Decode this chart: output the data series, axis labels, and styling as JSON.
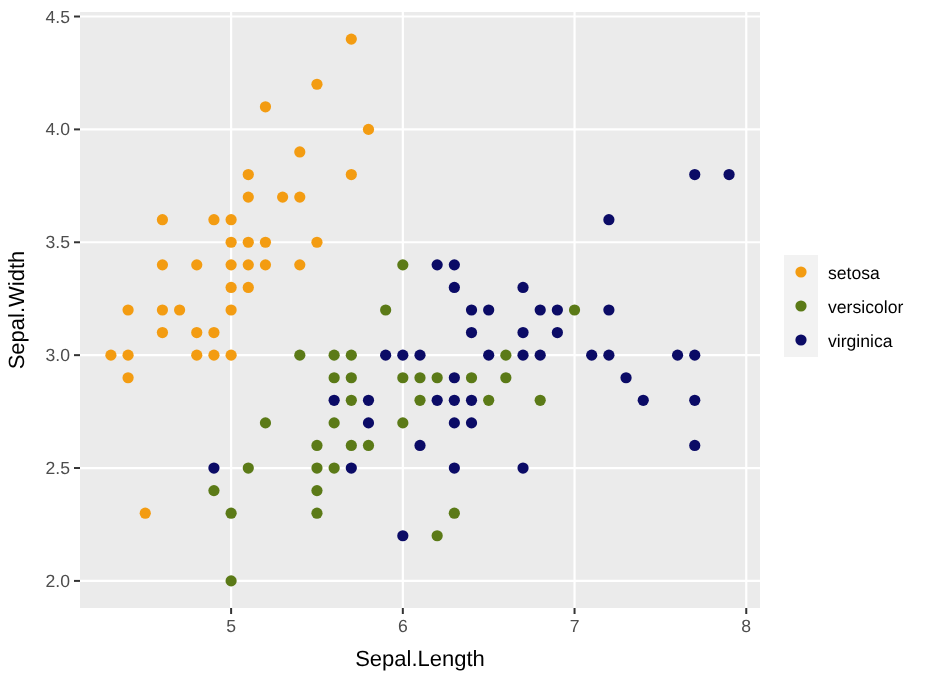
{
  "chart_data": {
    "type": "scatter",
    "xlabel": "Sepal.Length",
    "ylabel": "Sepal.Width",
    "xlim": [
      4.12,
      8.08
    ],
    "ylim": [
      1.88,
      4.52
    ],
    "xticks": [
      5,
      6,
      7,
      8
    ],
    "yticks": [
      {
        "value": 2,
        "label": "2.0"
      },
      {
        "value": 2.5,
        "label": "2.5"
      },
      {
        "value": 3,
        "label": "3.0"
      },
      {
        "value": 3.5,
        "label": "3.5"
      },
      {
        "value": 4,
        "label": "4.0"
      },
      {
        "value": 4.5,
        "label": "4.5"
      }
    ],
    "grid": true,
    "legend": "right",
    "marker": "circle",
    "series": [
      {
        "name": "setosa",
        "color": "#f39c12",
        "x": [
          5.1,
          4.9,
          4.7,
          4.6,
          5.0,
          5.4,
          4.6,
          5.0,
          4.4,
          4.9,
          5.4,
          4.8,
          4.8,
          4.3,
          5.8,
          5.7,
          5.7,
          5.1,
          5.4,
          5.1,
          4.6,
          5.1,
          5.0,
          5.2,
          5.2,
          4.8,
          5.2,
          5.5,
          5.0,
          5.5,
          4.9,
          4.4,
          5.1,
          5.0,
          4.5,
          4.4,
          4.6,
          5.3,
          5.0
        ],
        "values": [
          3.5,
          3.0,
          3.2,
          3.1,
          3.6,
          3.9,
          3.4,
          3.4,
          2.9,
          3.1,
          3.7,
          3.4,
          3.0,
          3.0,
          4.0,
          4.4,
          3.8,
          3.8,
          3.4,
          3.7,
          3.6,
          3.3,
          3.0,
          3.5,
          3.4,
          3.1,
          4.1,
          4.2,
          3.2,
          3.5,
          3.6,
          3.0,
          3.4,
          3.5,
          2.3,
          3.2,
          3.2,
          3.7,
          3.3
        ]
      },
      {
        "name": "versicolor",
        "color": "#5b7a17",
        "x": [
          7.0,
          5.5,
          6.5,
          5.7,
          4.9,
          6.6,
          5.2,
          5.0,
          6.1,
          5.6,
          5.6,
          6.2,
          5.6,
          5.9,
          6.1,
          6.4,
          6.6,
          6.8,
          6.0,
          5.7,
          5.5,
          6.0,
          5.4,
          6.0,
          6.3,
          5.5,
          5.5,
          5.8,
          5.0,
          5.6,
          5.7,
          5.7,
          6.2,
          5.1
        ],
        "values": [
          3.2,
          2.3,
          2.8,
          2.8,
          2.4,
          2.9,
          2.7,
          2.0,
          2.9,
          2.9,
          3.0,
          2.2,
          2.5,
          3.2,
          2.8,
          2.9,
          3.0,
          2.8,
          2.9,
          2.6,
          2.4,
          2.7,
          3.0,
          3.4,
          2.3,
          2.5,
          2.6,
          2.6,
          2.3,
          2.7,
          3.0,
          2.9,
          2.9,
          2.5
        ]
      },
      {
        "name": "virginica",
        "color": "#0b0b66",
        "x": [
          6.3,
          5.8,
          7.1,
          6.3,
          6.5,
          7.6,
          4.9,
          7.3,
          6.7,
          7.2,
          6.5,
          6.4,
          6.8,
          5.7,
          5.8,
          6.4,
          7.7,
          7.7,
          6.0,
          6.9,
          5.6,
          7.7,
          6.3,
          6.7,
          7.2,
          6.2,
          6.1,
          6.4,
          7.2,
          7.4,
          7.9,
          6.3,
          6.1,
          7.7,
          6.3,
          6.4,
          6.0,
          6.9,
          6.7,
          6.8,
          6.7,
          6.3,
          6.2,
          5.9
        ],
        "values": [
          3.3,
          2.7,
          3.0,
          2.9,
          3.0,
          3.0,
          2.5,
          2.9,
          2.5,
          3.6,
          3.2,
          2.7,
          3.0,
          2.5,
          2.8,
          3.2,
          3.8,
          2.6,
          2.2,
          3.2,
          2.8,
          2.8,
          2.7,
          3.3,
          3.2,
          2.8,
          3.0,
          2.8,
          3.0,
          2.8,
          3.8,
          2.8,
          2.6,
          3.0,
          3.4,
          3.1,
          3.0,
          3.1,
          3.1,
          3.2,
          3.0,
          2.5,
          3.4,
          3.0
        ]
      }
    ]
  }
}
